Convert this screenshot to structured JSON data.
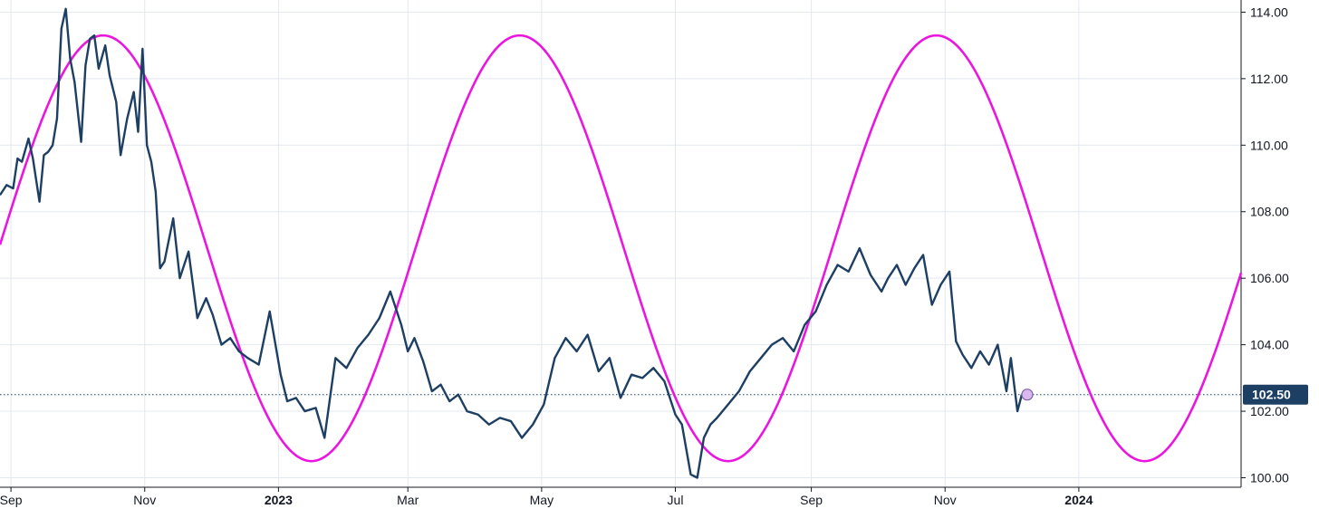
{
  "chart_data": {
    "type": "line",
    "title": "",
    "xlabel": "",
    "ylabel": "",
    "ylim": [
      99.9,
      114.1
    ],
    "y_ticks": [
      "100.00",
      "102.00",
      "104.00",
      "106.00",
      "108.00",
      "110.00",
      "112.00",
      "114.00"
    ],
    "x_range": [
      "2022-08-27",
      "2024-03-15"
    ],
    "x_ticks": [
      {
        "date": "2022-09-01",
        "label": "Sep",
        "bold": false
      },
      {
        "date": "2022-11-01",
        "label": "Nov",
        "bold": false
      },
      {
        "date": "2023-01-01",
        "label": "2023",
        "bold": true
      },
      {
        "date": "2023-03-01",
        "label": "Mar",
        "bold": false
      },
      {
        "date": "2023-05-01",
        "label": "May",
        "bold": false
      },
      {
        "date": "2023-07-01",
        "label": "Jul",
        "bold": false
      },
      {
        "date": "2023-09-01",
        "label": "Sep",
        "bold": false
      },
      {
        "date": "2023-11-01",
        "label": "Nov",
        "bold": false
      },
      {
        "date": "2024-01-01",
        "label": "2024",
        "bold": true
      }
    ],
    "grid": true,
    "last_price": {
      "value": 102.5,
      "label": "102.50",
      "color": "#1d3f63"
    },
    "colors": {
      "price": "#1d3f63",
      "cycle": "#ea16e0",
      "grid": "#e3e8f0",
      "dotted": "#1d3f63"
    },
    "series": [
      {
        "role": "price",
        "x": [
          "2022-08-27",
          "2022-08-30",
          "2022-09-02",
          "2022-09-04",
          "2022-09-06",
          "2022-09-09",
          "2022-09-11",
          "2022-09-14",
          "2022-09-16",
          "2022-09-18",
          "2022-09-20",
          "2022-09-22",
          "2022-09-24",
          "2022-09-26",
          "2022-09-28",
          "2022-09-30",
          "2022-10-03",
          "2022-10-05",
          "2022-10-07",
          "2022-10-09",
          "2022-10-11",
          "2022-10-14",
          "2022-10-16",
          "2022-10-19",
          "2022-10-21",
          "2022-10-24",
          "2022-10-27",
          "2022-10-29",
          "2022-10-31",
          "2022-11-02",
          "2022-11-04",
          "2022-11-06",
          "2022-11-08",
          "2022-11-10",
          "2022-11-14",
          "2022-11-17",
          "2022-11-21",
          "2022-11-25",
          "2022-11-29",
          "2022-12-02",
          "2022-12-06",
          "2022-12-10",
          "2022-12-14",
          "2022-12-18",
          "2022-12-23",
          "2022-12-28",
          "2023-01-02",
          "2023-01-05",
          "2023-01-09",
          "2023-01-13",
          "2023-01-18",
          "2023-01-22",
          "2023-01-27",
          "2023-02-01",
          "2023-02-06",
          "2023-02-11",
          "2023-02-16",
          "2023-02-21",
          "2023-02-26",
          "2023-03-01",
          "2023-03-04",
          "2023-03-08",
          "2023-03-12",
          "2023-03-16",
          "2023-03-20",
          "2023-03-24",
          "2023-03-28",
          "2023-04-02",
          "2023-04-07",
          "2023-04-12",
          "2023-04-17",
          "2023-04-22",
          "2023-04-27",
          "2023-05-02",
          "2023-05-07",
          "2023-05-12",
          "2023-05-17",
          "2023-05-22",
          "2023-05-27",
          "2023-06-01",
          "2023-06-06",
          "2023-06-11",
          "2023-06-16",
          "2023-06-21",
          "2023-06-26",
          "2023-07-01",
          "2023-07-04",
          "2023-07-08",
          "2023-07-11",
          "2023-07-14",
          "2023-07-17",
          "2023-07-20",
          "2023-07-25",
          "2023-07-30",
          "2023-08-04",
          "2023-08-09",
          "2023-08-14",
          "2023-08-19",
          "2023-08-24",
          "2023-08-29",
          "2023-09-03",
          "2023-09-08",
          "2023-09-13",
          "2023-09-18",
          "2023-09-23",
          "2023-09-28",
          "2023-10-03",
          "2023-10-06",
          "2023-10-10",
          "2023-10-14",
          "2023-10-18",
          "2023-10-22",
          "2023-10-26",
          "2023-10-30",
          "2023-11-03",
          "2023-11-06",
          "2023-11-09",
          "2023-11-13",
          "2023-11-17",
          "2023-11-21",
          "2023-11-25",
          "2023-11-29",
          "2023-12-01",
          "2023-12-04",
          "2023-12-06"
        ],
        "values": [
          108.5,
          108.8,
          108.7,
          109.6,
          109.5,
          110.2,
          109.6,
          108.3,
          109.7,
          109.8,
          110.0,
          110.8,
          113.5,
          114.1,
          112.6,
          111.9,
          110.1,
          112.4,
          113.2,
          113.3,
          112.3,
          113.0,
          112.1,
          111.3,
          109.7,
          110.8,
          111.6,
          110.4,
          112.9,
          110.0,
          109.5,
          108.6,
          106.3,
          106.5,
          107.8,
          106.0,
          106.8,
          104.8,
          105.4,
          104.9,
          104.0,
          104.2,
          103.8,
          103.6,
          103.4,
          105.0,
          103.1,
          102.3,
          102.4,
          102.0,
          102.1,
          101.2,
          103.6,
          103.3,
          103.9,
          104.3,
          104.8,
          105.6,
          104.6,
          103.8,
          104.2,
          103.5,
          102.6,
          102.8,
          102.3,
          102.5,
          102.0,
          101.9,
          101.6,
          101.8,
          101.7,
          101.2,
          101.6,
          102.2,
          103.6,
          104.2,
          103.8,
          104.3,
          103.2,
          103.6,
          102.4,
          103.1,
          103.0,
          103.3,
          102.9,
          101.9,
          101.6,
          100.1,
          100.0,
          101.2,
          101.6,
          101.8,
          102.2,
          102.6,
          103.2,
          103.6,
          104.0,
          104.2,
          103.8,
          104.6,
          105.0,
          105.8,
          106.4,
          106.2,
          106.9,
          106.1,
          105.6,
          106.0,
          106.4,
          105.8,
          106.3,
          106.7,
          105.2,
          105.8,
          106.2,
          104.1,
          103.7,
          103.3,
          103.8,
          103.4,
          104.0,
          102.6,
          103.6,
          102.0,
          102.5
        ]
      },
      {
        "role": "cycle",
        "type": "sine",
        "min": 100.5,
        "max": 113.3,
        "period_days": 190,
        "first_peak": "2022-10-13",
        "x_start": "2022-08-27",
        "x_end": "2024-03-15"
      }
    ]
  }
}
